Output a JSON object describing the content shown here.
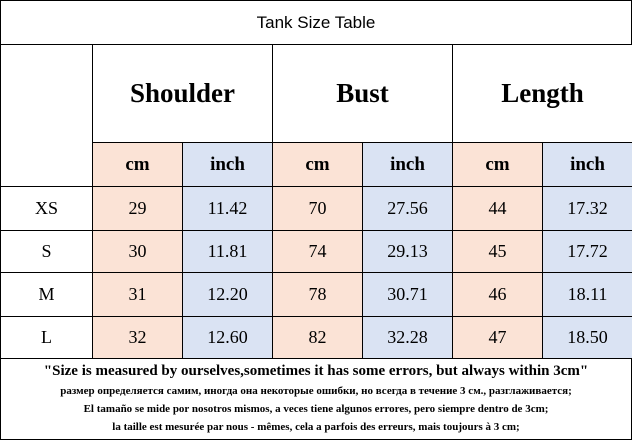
{
  "header": {
    "title": "Tank Size Table"
  },
  "table": {
    "groups": [
      "Shoulder",
      "Bust",
      "Length"
    ],
    "units": [
      "cm",
      "inch",
      "cm",
      "inch",
      "cm",
      "inch"
    ],
    "rows": [
      [
        "XS",
        "29",
        "11.42",
        "70",
        "27.56",
        "44",
        "17.32"
      ],
      [
        "S",
        "30",
        "11.81",
        "74",
        "29.13",
        "45",
        "17.72"
      ],
      [
        "M",
        "31",
        "12.20",
        "78",
        "30.71",
        "46",
        "18.11"
      ],
      [
        "L",
        "32",
        "12.60",
        "82",
        "32.28",
        "47",
        "18.50"
      ]
    ]
  },
  "notes": [
    "\"Size is measured by ourselves,sometimes it has some errors, but always within 3cm\"",
    "размер определяется самим, иногда она некоторые ошибки, но всегда в течение 3 см., разглаживается;",
    "El tamaño se mide por nosotros mismos, a veces tiene algunos errores, pero siempre dentro de 3cm;",
    "la taille est mesurée par nous - mêmes, cela a parfois des erreurs, mais toujours à 3 cm;"
  ]
}
